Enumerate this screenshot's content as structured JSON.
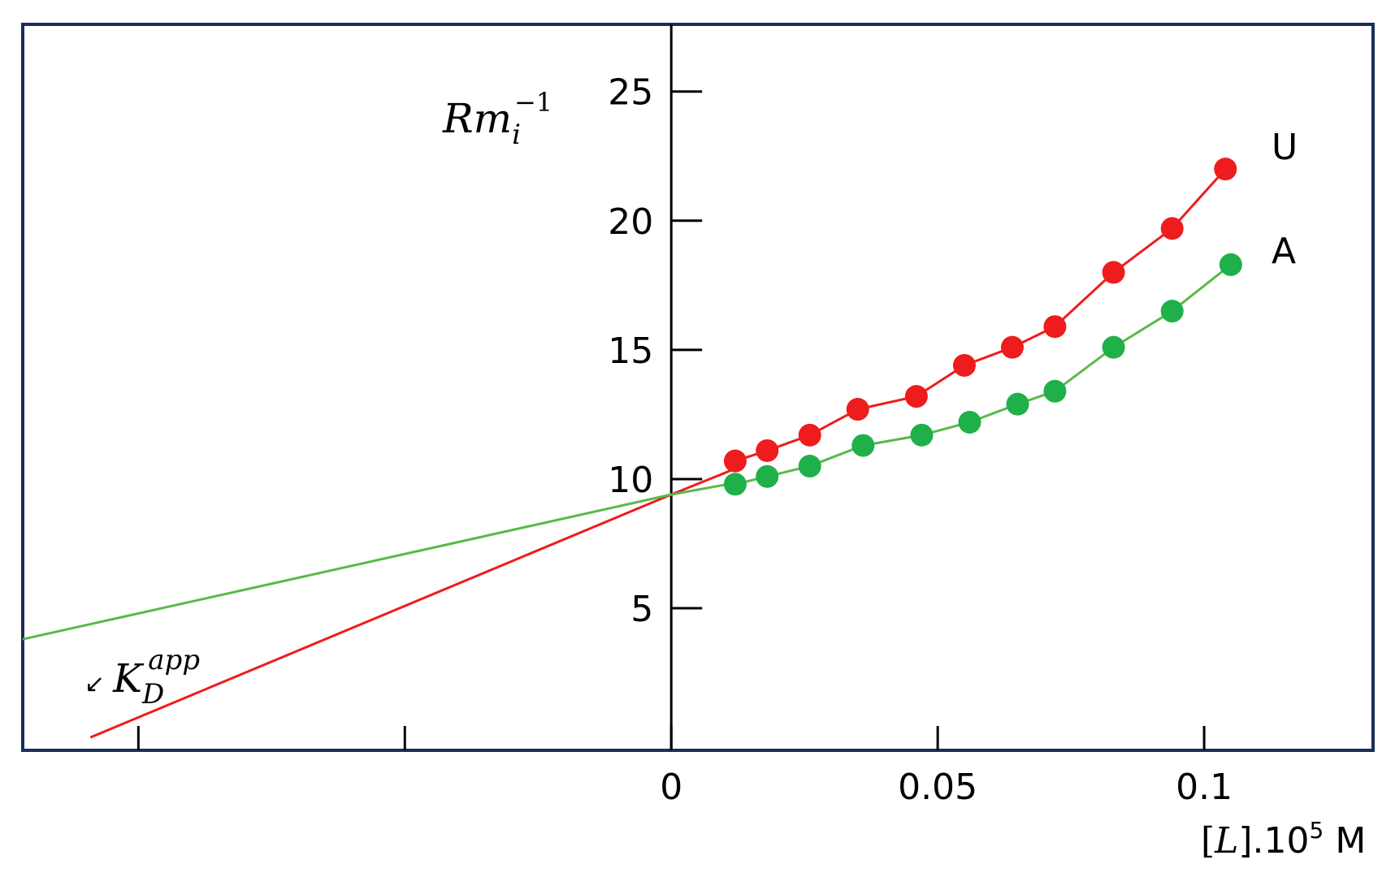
{
  "chart_data": {
    "type": "scatter",
    "xlim": [
      -0.1217,
      0.1317
    ],
    "ylim": [
      -0.5,
      27.6
    ],
    "frame_color": "#1a2e5a",
    "x_ticks": [
      {
        "value": 0,
        "label": "0"
      },
      {
        "value": 0.05,
        "label": "0.05"
      },
      {
        "value": 0.1,
        "label": "0.1"
      }
    ],
    "x_ticks_unlabeled": [
      -0.1,
      -0.05
    ],
    "y_ticks": [
      {
        "value": 5,
        "label": "5"
      },
      {
        "value": 10,
        "label": "10"
      },
      {
        "value": 15,
        "label": "15"
      },
      {
        "value": 20,
        "label": "20"
      },
      {
        "value": 25,
        "label": "25"
      }
    ],
    "xlabel": {
      "prefix": "[",
      "var": "L",
      "mid": "].10",
      "sup": "5",
      "suffix": " M"
    },
    "ylabel": {
      "base": "Rm",
      "sub": "i",
      "sup": "−1"
    },
    "annotation": {
      "arrow": "↙",
      "base": "K",
      "sub": "D",
      "sup": "app"
    },
    "series": [
      {
        "name": "U",
        "color": "#ee1c1c",
        "marker_color": "#ee1c1c",
        "points": [
          {
            "x": 0.012,
            "y": 10.7
          },
          {
            "x": 0.018,
            "y": 11.1
          },
          {
            "x": 0.026,
            "y": 11.7
          },
          {
            "x": 0.035,
            "y": 12.7
          },
          {
            "x": 0.046,
            "y": 13.2
          },
          {
            "x": 0.055,
            "y": 14.4
          },
          {
            "x": 0.064,
            "y": 15.1
          },
          {
            "x": 0.072,
            "y": 15.9
          },
          {
            "x": 0.083,
            "y": 18.0
          },
          {
            "x": 0.094,
            "y": 19.7
          },
          {
            "x": 0.104,
            "y": 22.0
          }
        ],
        "fit_line": [
          {
            "x": -0.109,
            "y": 0.0
          },
          {
            "x": 0.0,
            "y": 9.4
          },
          {
            "x": 0.012,
            "y": 10.4
          }
        ]
      },
      {
        "name": "A",
        "color": "#5bb84a",
        "marker_color": "#1fb04a",
        "points": [
          {
            "x": 0.012,
            "y": 9.8
          },
          {
            "x": 0.018,
            "y": 10.1
          },
          {
            "x": 0.026,
            "y": 10.5
          },
          {
            "x": 0.036,
            "y": 11.3
          },
          {
            "x": 0.047,
            "y": 11.7
          },
          {
            "x": 0.056,
            "y": 12.2
          },
          {
            "x": 0.065,
            "y": 12.9
          },
          {
            "x": 0.072,
            "y": 13.4
          },
          {
            "x": 0.083,
            "y": 15.1
          },
          {
            "x": 0.094,
            "y": 16.5
          },
          {
            "x": 0.105,
            "y": 18.3
          }
        ],
        "fit_line": [
          {
            "x": -0.1217,
            "y": 3.8
          },
          {
            "x": 0.0,
            "y": 9.4
          },
          {
            "x": 0.012,
            "y": 9.85
          }
        ]
      }
    ]
  }
}
